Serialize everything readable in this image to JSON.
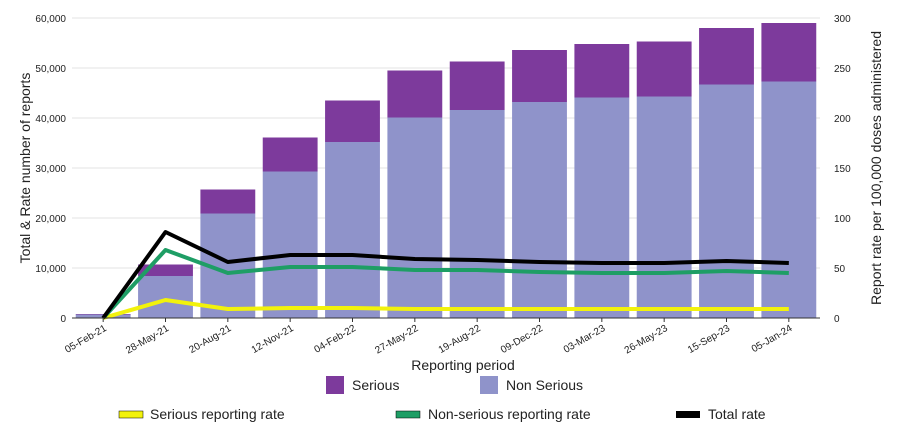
{
  "chart_data": {
    "type": "bar",
    "xlabel": "Reporting period",
    "ylabel_left": "Total & Rate number of reports",
    "ylabel_right": "Report rate per 100,000 doses administered",
    "ylim_left": [
      0,
      60000
    ],
    "ylim_right": [
      0,
      300
    ],
    "yticks_left": [
      "0",
      "10,000",
      "20,000",
      "30,000",
      "40,000",
      "50,000",
      "60,000"
    ],
    "yticks_right": [
      "0",
      "50",
      "100",
      "150",
      "200",
      "250",
      "300"
    ],
    "grid": true,
    "categories": [
      "05-Feb-21",
      "28-May-21",
      "20-Aug-21",
      "12-Nov-21",
      "04-Feb-22",
      "27-May-22",
      "19-Aug-22",
      "09-Dec-22",
      "03-Mar-23",
      "26-May-23",
      "15-Sep-23",
      "05-Jan-24"
    ],
    "stacked_series": [
      {
        "name": "Non Serious",
        "color": "#8f93ca",
        "values": [
          700,
          8400,
          20900,
          29300,
          35200,
          40100,
          41600,
          43200,
          44100,
          44300,
          46700,
          47300
        ]
      },
      {
        "name": "Serious",
        "color": "#7d3a9c",
        "values": [
          100,
          2300,
          4800,
          6800,
          8300,
          9400,
          9700,
          10400,
          10700,
          11000,
          11300,
          11700
        ]
      }
    ],
    "rate_series": [
      {
        "name": "Serious reporting rate",
        "color": "#f2f20c",
        "values": [
          0,
          18,
          9,
          10,
          10,
          9,
          9,
          9,
          9,
          9,
          9,
          9
        ]
      },
      {
        "name": "Non-serious reporting rate",
        "color": "#1e9e65",
        "values": [
          0,
          68,
          45,
          51,
          51,
          48,
          48,
          46,
          45,
          45,
          47,
          45
        ]
      },
      {
        "name": "Total rate",
        "color": "#000000",
        "values": [
          0,
          86,
          56,
          63,
          63,
          59,
          58,
          56,
          55,
          55,
          57,
          55
        ]
      }
    ],
    "legend_placement": "bottom"
  }
}
